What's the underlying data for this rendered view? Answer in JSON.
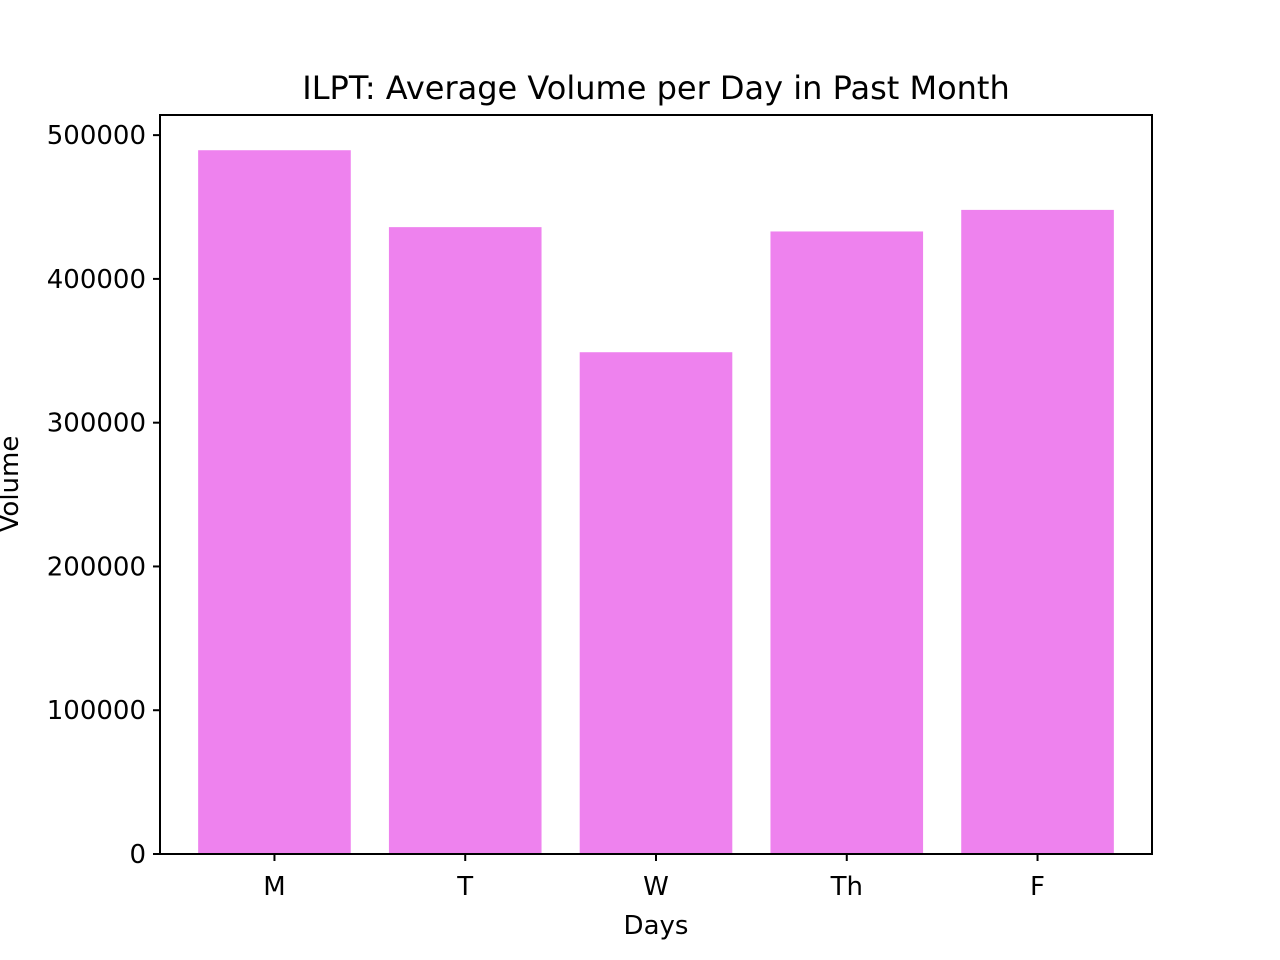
{
  "chart_data": {
    "type": "bar",
    "title": "ILPT: Average Volume per Day in Past Month",
    "xlabel": "Days",
    "ylabel": "Volume",
    "categories": [
      "M",
      "T",
      "W",
      "Th",
      "F"
    ],
    "values": [
      489500,
      436000,
      349000,
      433000,
      448000
    ],
    "ylim": [
      0,
      514000
    ],
    "yticks": [
      0,
      100000,
      200000,
      300000,
      400000,
      500000
    ],
    "ytick_labels": [
      "0",
      "100000",
      "200000",
      "300000",
      "400000",
      "500000"
    ],
    "bar_color": "#ee82ee",
    "grid": false,
    "legend": "none"
  }
}
